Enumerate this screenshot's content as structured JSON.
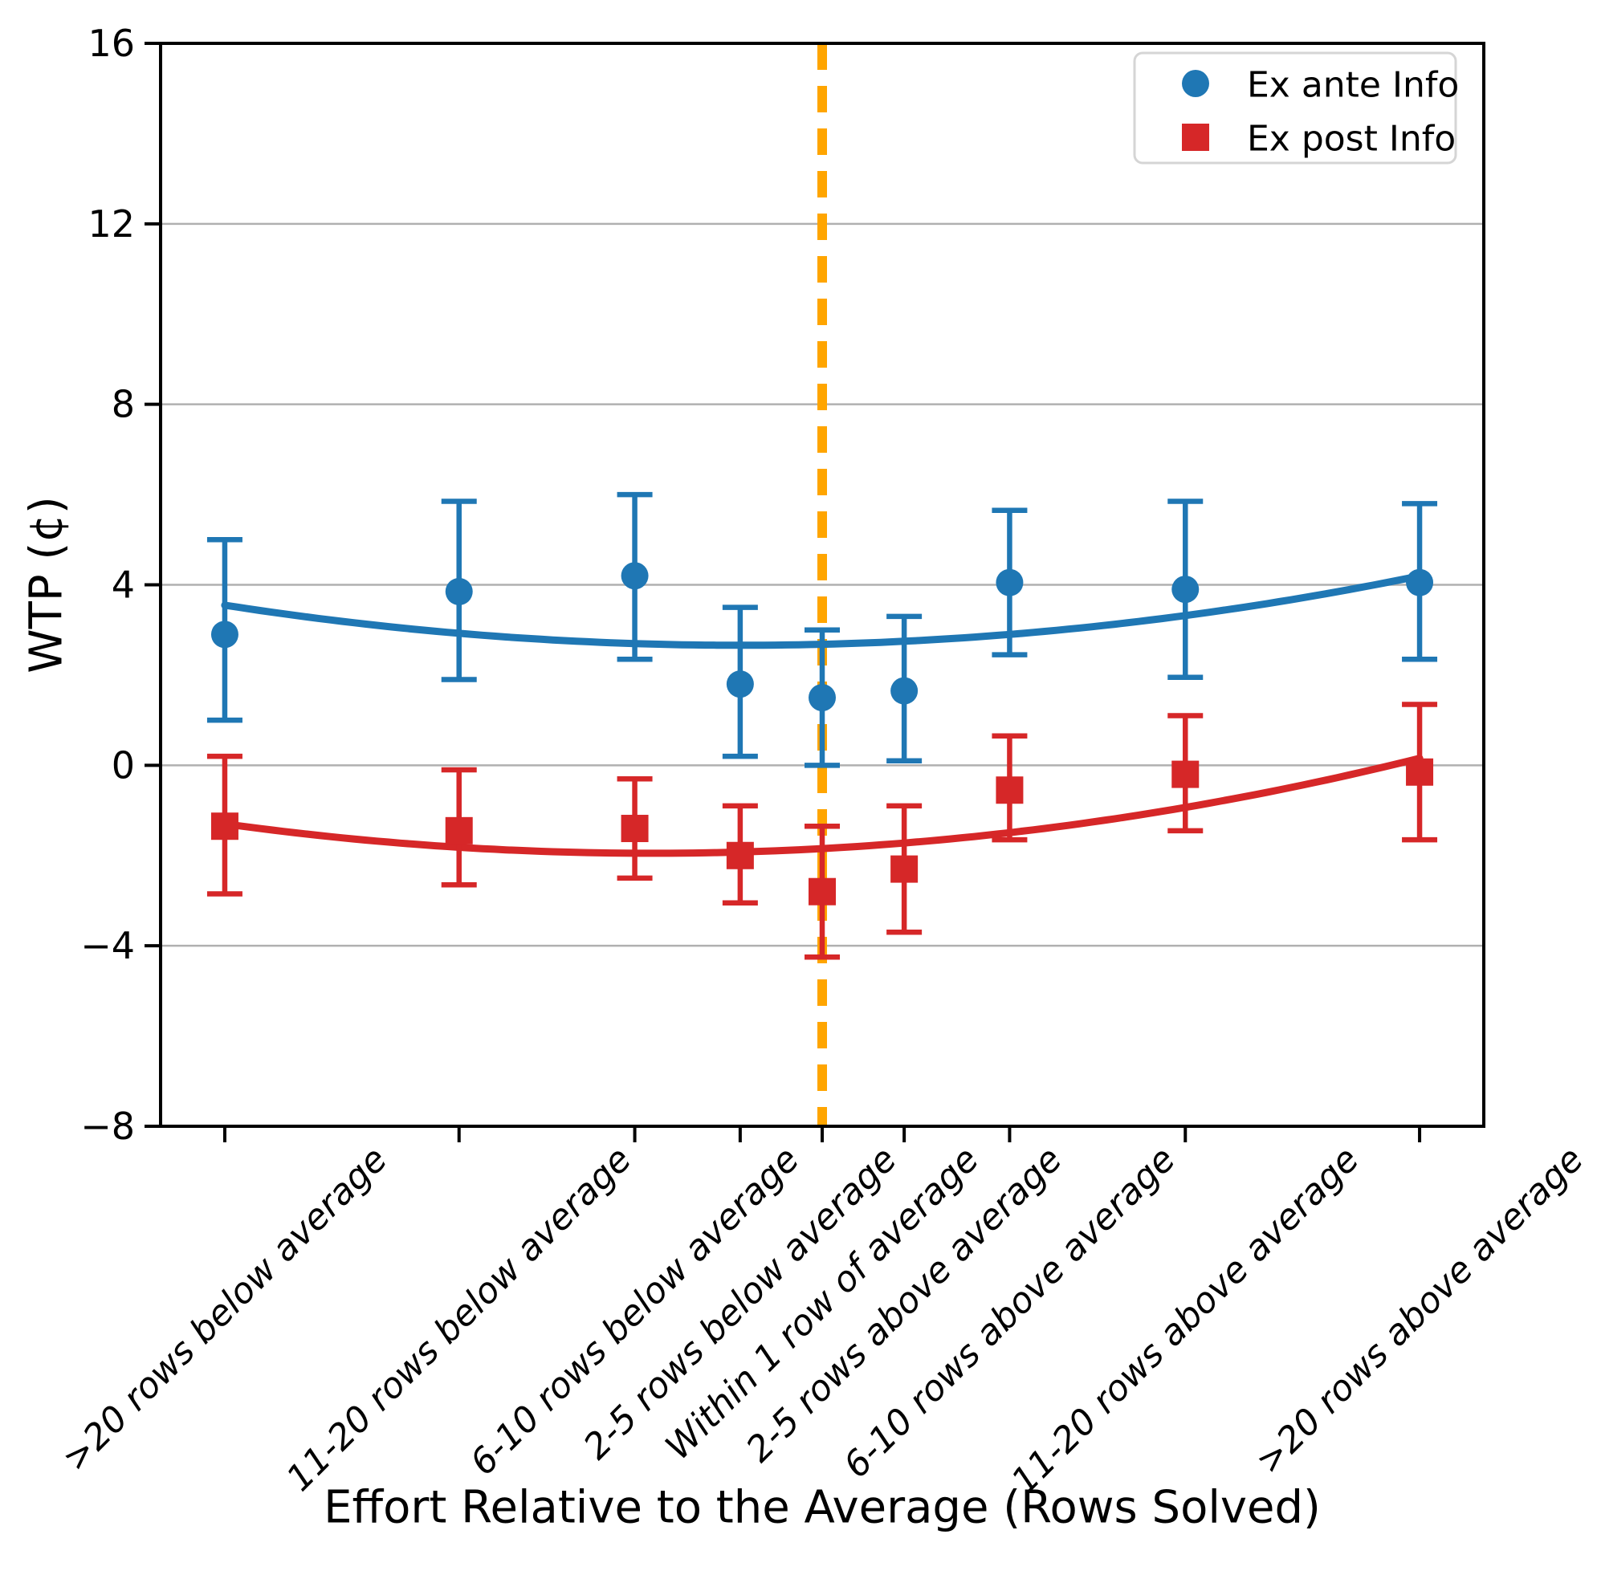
{
  "chart_data": {
    "type": "scatter",
    "title": "",
    "xlabel": "Effort Relative to the Average (Rows Solved)",
    "ylabel": "WTP (¢)",
    "ylim": [
      -8,
      16
    ],
    "ytick_values": [
      16,
      12,
      8,
      4,
      0,
      -4,
      -8
    ],
    "ytick_labels": [
      "16",
      "12",
      "8",
      "4",
      "0",
      "−4",
      "−8"
    ],
    "grid": "horizontal",
    "grid_color": "#b0b0b0",
    "axis_color": "#000000",
    "categories": [
      ">20 rows below average",
      "11-20 rows below average",
      "6-10 rows below average",
      "2-5 rows below average",
      "Within 1 row of average",
      "2-5 rows above average",
      "6-10 rows above average",
      "11-20 rows above average",
      ">20 rows above average"
    ],
    "category_positions": [
      -25.5,
      -15.5,
      -8,
      -3.5,
      0,
      3.5,
      8,
      15.5,
      25.5
    ],
    "xlim": [
      -28.24,
      28.24
    ],
    "reference_line": {
      "x": 0,
      "color": "#FFA500",
      "style": "dashed"
    },
    "series": [
      {
        "name": "Ex ante Info",
        "marker": "circle",
        "color": "#1f77b4",
        "values": [
          2.9,
          3.85,
          4.2,
          1.8,
          1.5,
          1.65,
          4.05,
          3.9,
          4.05
        ],
        "ci_low": [
          1.0,
          1.9,
          2.35,
          0.2,
          0.0,
          0.1,
          2.45,
          1.95,
          2.35
        ],
        "ci_high": [
          5.0,
          5.85,
          6.0,
          3.5,
          3.0,
          3.3,
          5.65,
          5.85,
          5.8
        ],
        "fit": {
          "shape": "quadratic",
          "min": 2.66,
          "vertex": -3.47,
          "a": 0.00183
        }
      },
      {
        "name": "Ex post Info",
        "marker": "square",
        "color": "#d62728",
        "values": [
          -1.35,
          -1.45,
          -1.4,
          -2.0,
          -2.8,
          -2.3,
          -0.55,
          -0.2,
          -0.15
        ],
        "ci_low": [
          -2.85,
          -2.65,
          -2.5,
          -3.05,
          -4.25,
          -3.7,
          -1.65,
          -1.45,
          -1.65
        ],
        "ci_high": [
          0.2,
          -0.1,
          -0.3,
          -0.9,
          -1.35,
          -0.9,
          0.65,
          1.1,
          1.35
        ],
        "fit": {
          "shape": "quadratic",
          "min": -1.95,
          "vertex": -7.27,
          "a": 0.00196
        }
      }
    ],
    "legend": {
      "position": "upper right",
      "entries": [
        "Ex ante Info",
        "Ex post Info"
      ]
    }
  }
}
